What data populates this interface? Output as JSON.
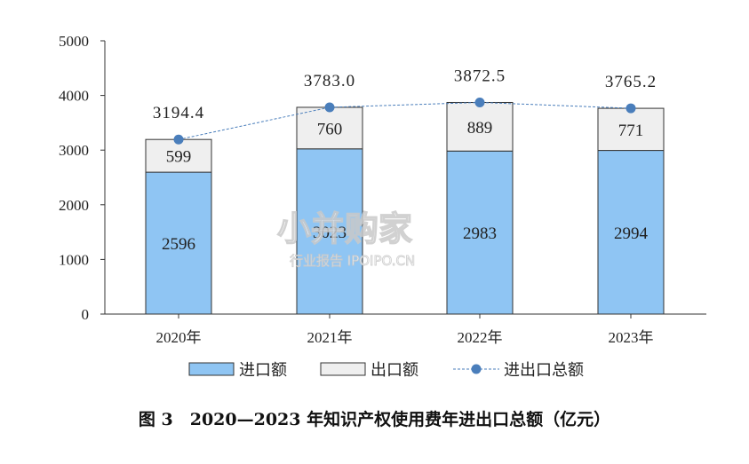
{
  "chart_data": {
    "type": "bar",
    "stacked": true,
    "categories": [
      "2020年",
      "2021年",
      "2022年",
      "2023年"
    ],
    "series": [
      {
        "name": "进口额",
        "kind": "bar",
        "color": "#8fc5f3",
        "values": [
          2596,
          3023,
          2983,
          2994
        ]
      },
      {
        "name": "出口额",
        "kind": "bar",
        "color": "#efefef",
        "values": [
          599,
          760,
          889,
          771
        ]
      },
      {
        "name": "进出口总额",
        "kind": "line",
        "color": "#4a7ebb",
        "values": [
          3194.4,
          3783.0,
          3872.5,
          3765.2
        ]
      }
    ],
    "bar_labels": {
      "import": [
        "2596",
        "3023",
        "2983",
        "2994"
      ],
      "export": [
        "599",
        "760",
        "889",
        "771"
      ],
      "total": [
        "3194.4",
        "3783.0",
        "3872.5",
        "3765.2"
      ]
    },
    "y_ticks": [
      "0",
      "1000",
      "2000",
      "3000",
      "4000",
      "5000"
    ],
    "ylim": [
      0,
      5000
    ],
    "title": "图 3　2020—2023 年知识产权使用费年进出口总额（亿元）",
    "legend_position": "bottom",
    "grid": false
  },
  "watermark": {
    "text": "小并购家",
    "subtext": "行业报告 IPOIPO.CN"
  }
}
